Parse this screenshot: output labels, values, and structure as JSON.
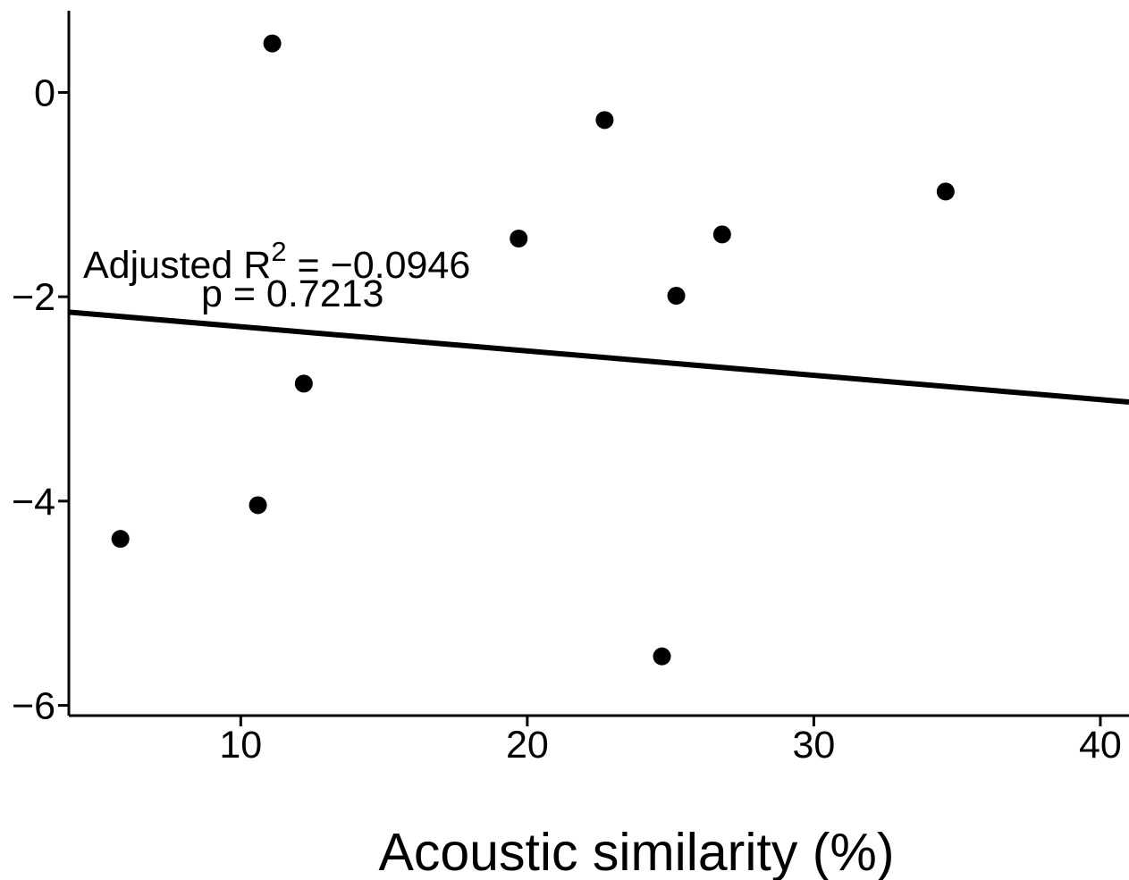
{
  "chart_data": {
    "type": "scatter",
    "title": "",
    "xlabel": "Acoustic similarity (%)",
    "ylabel": "",
    "xlim": [
      4,
      41
    ],
    "ylim": [
      -6.1,
      0.8
    ],
    "grid": false,
    "x_ticks": [
      10,
      20,
      30,
      40
    ],
    "y_ticks": [
      0,
      -2,
      -4,
      -6
    ],
    "x_tick_labels": [
      "10",
      "20",
      "30",
      "40"
    ],
    "y_tick_labels": [
      "0",
      "−2",
      "−4",
      "−6"
    ],
    "series": [
      {
        "points": [
          {
            "x": 5.8,
            "y": -4.37
          },
          {
            "x": 10.6,
            "y": -4.04
          },
          {
            "x": 11.1,
            "y": 0.48
          },
          {
            "x": 12.2,
            "y": -2.85
          },
          {
            "x": 19.7,
            "y": -1.43
          },
          {
            "x": 22.7,
            "y": -0.27
          },
          {
            "x": 24.7,
            "y": -5.52
          },
          {
            "x": 25.2,
            "y": -1.99
          },
          {
            "x": 26.8,
            "y": -1.39
          },
          {
            "x": 34.6,
            "y": -0.97
          }
        ],
        "color": "#000000"
      }
    ],
    "regression_line": {
      "x": [
        4,
        41
      ],
      "y": [
        -2.15,
        -3.03
      ],
      "color": "#000000"
    },
    "annotations": {
      "r2_prefix": "Adjusted R",
      "r2_superscript": "2",
      "r2_value": " = −0.0946",
      "p_text": "p = 0.7213"
    }
  }
}
